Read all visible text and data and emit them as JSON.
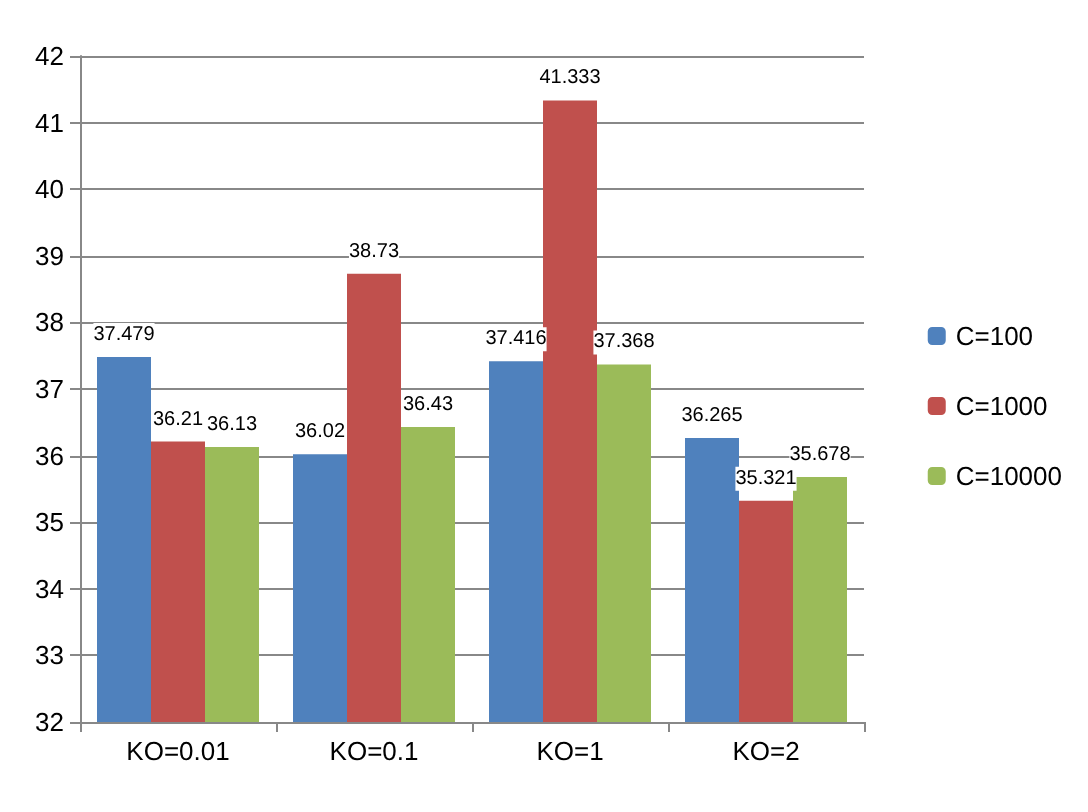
{
  "chart_data": {
    "type": "bar",
    "categories": [
      "KO=0.01",
      "KO=0.1",
      "KO=1",
      "KO=2"
    ],
    "series": [
      {
        "name": "C=100",
        "color": "#4f81bd",
        "values": [
          37.479,
          36.02,
          37.416,
          36.265
        ]
      },
      {
        "name": "C=1000",
        "color": "#c0504d",
        "values": [
          36.21,
          38.73,
          41.333,
          35.321
        ]
      },
      {
        "name": "C=10000",
        "color": "#9bbb59",
        "values": [
          36.13,
          36.43,
          37.368,
          35.678
        ]
      }
    ],
    "ylim": [
      32,
      42
    ],
    "yticks": [
      32,
      33,
      34,
      35,
      36,
      37,
      38,
      39,
      40,
      41,
      42
    ],
    "grid": "y",
    "legend": "right",
    "data_labels": true
  }
}
